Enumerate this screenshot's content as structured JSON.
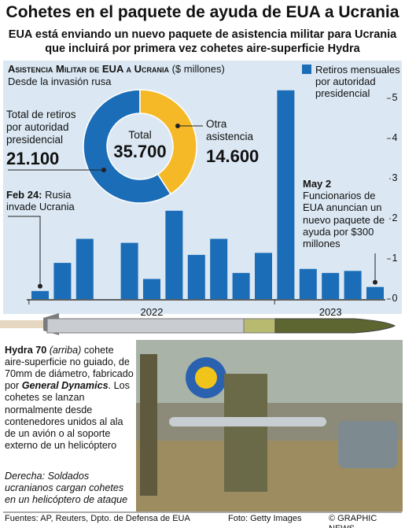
{
  "header": {
    "title": "Cohetes en el paquete de ayuda de EUA a Ucrania",
    "subtitle": [
      "EUA está enviando un nuevo paquete de asistencia militar para Ucrania",
      "que incluirá por primera vez cohetes aire-superficie Hydra"
    ]
  },
  "chart_data": [
    {
      "type": "bar",
      "title": "Asistencia Militar de EUA a Ucrania",
      "unit": "($ millones)",
      "subtitle": "Desde la invasión rusa",
      "categories": [
        null,
        null,
        null,
        null,
        null,
        null,
        null,
        null,
        null,
        null,
        null,
        null,
        null,
        null,
        null,
        null
      ],
      "x_labels": [
        "2022",
        "2023"
      ],
      "series": [
        {
          "name": "Retiros mensuales por autoridad presidencial",
          "color": "#1b6db8",
          "values": [
            0.2,
            0.9,
            1.5,
            0,
            1.4,
            0.5,
            2.2,
            1.1,
            1.5,
            0.65,
            1.15,
            5.2,
            0.75,
            0.65,
            0.7,
            0.3
          ]
        }
      ],
      "ylim": [
        0,
        5.5
      ],
      "yticks": [
        0,
        1,
        2,
        3,
        4,
        5
      ],
      "annotations": [
        {
          "date": "Feb 24:",
          "text": "Rusia invade Ucrania"
        },
        {
          "date": "May 2",
          "text": "Funcionarios de EUA anuncian un nuevo paquete de ayuda por $300 millones"
        }
      ]
    },
    {
      "type": "pie",
      "labels": [
        "Total de retiros por autoridad presidencial",
        "Otra asistencia"
      ],
      "values": [
        21100,
        14600
      ],
      "value_labels": [
        "21.100",
        "14.600"
      ],
      "colors": [
        "#1b6db8",
        "#f5b827"
      ],
      "center_label": "Total",
      "total": {
        "value": 35700,
        "label": "35.700"
      }
    }
  ],
  "caption": {
    "name": "Hydra 70",
    "note": "(arriba)",
    "text": "cohete aire-superficie no guiado, de 70mm de diámetro, fabricado por",
    "maker": "General Dynamics",
    "text2": ". Los cohetes se lanzan normalmente desde contenedores unidos al ala de un avión o al soporte externo de un helicóptero"
  },
  "photo_caption": "Derecha: Soldados ucranianos cargan cohetes en un helicóptero de ataque",
  "footer": {
    "sources": "Fuentes: AP, Reuters, Dpto. de Defensa de EUA",
    "photo": "Foto: Getty Images",
    "credit": "© GRAPHIC NEWS"
  }
}
